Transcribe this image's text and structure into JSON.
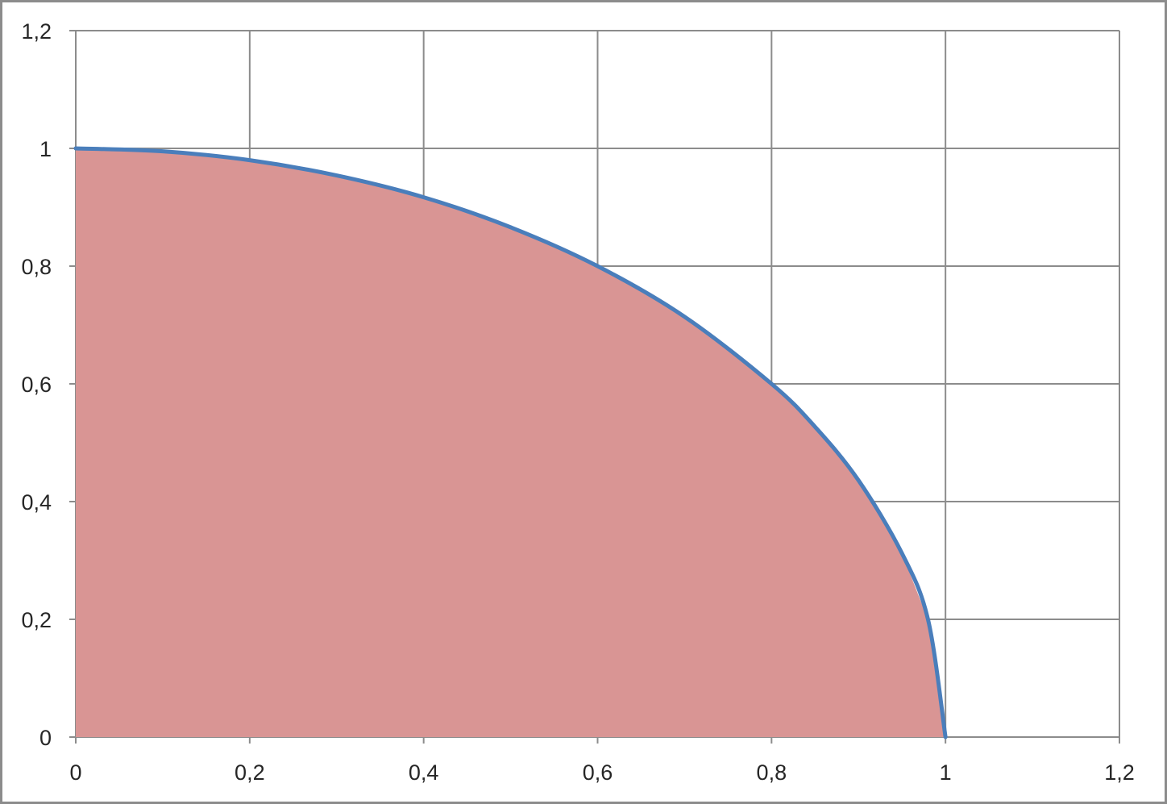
{
  "chart_data": {
    "type": "area",
    "title": "",
    "xlabel": "",
    "ylabel": "",
    "xlim": [
      0,
      1.2
    ],
    "ylim": [
      0,
      1.2
    ],
    "x_ticks": [
      "0",
      "0,2",
      "0,4",
      "0,6",
      "0,8",
      "1",
      "1,2"
    ],
    "y_ticks": [
      "0",
      "0,2",
      "0,4",
      "0,6",
      "0,8",
      "1",
      "1,2"
    ],
    "grid": true,
    "legend": "none",
    "series": [
      {
        "type": "area",
        "color": "#d99594",
        "x": [
          0,
          0.1,
          0.2,
          0.3,
          0.4,
          0.5,
          0.6,
          0.7,
          0.8,
          0.85,
          0.9,
          0.95,
          0.98,
          1.0
        ],
        "y": [
          1.0,
          0.995,
          0.98,
          0.954,
          0.917,
          0.866,
          0.8,
          0.714,
          0.6,
          0.527,
          0.436,
          0.312,
          0.199,
          0.0
        ]
      },
      {
        "type": "line",
        "color": "#4a7ebb",
        "x": [
          0,
          0.1,
          0.2,
          0.3,
          0.4,
          0.5,
          0.6,
          0.7,
          0.8,
          0.85,
          0.9,
          0.95,
          0.98,
          1.0
        ],
        "y": [
          1.0,
          0.995,
          0.98,
          0.954,
          0.917,
          0.866,
          0.8,
          0.714,
          0.6,
          0.527,
          0.436,
          0.312,
          0.199,
          0.0
        ]
      }
    ]
  }
}
